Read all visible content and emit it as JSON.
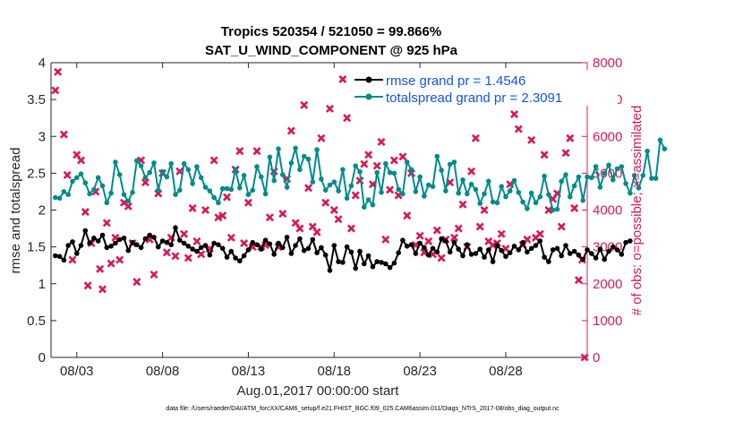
{
  "chart_data": {
    "type": "line",
    "title": "Tropics 520354 / 521050 = 99.866%",
    "subtitle": "SAT_U_WIND_COMPONENT @ 925 hPa",
    "xlabel": "Aug.01,2017 00:00:00 start",
    "ylabel": "rmse and totalspread",
    "y2label": "# of obs: o=possible; ×=assimilated",
    "footnote": "data file: /Users/raeder/DAI/ATM_forcXX/CAM6_setup/f.e21.FHIST_BGC.f09_025.CAM6assim.011/Diags_NTrS_2017-08/obs_diag_output.nc",
    "xlim": [
      1.5,
      32.75
    ],
    "ylim": [
      0,
      4
    ],
    "y2lim": [
      0,
      8000
    ],
    "x_ticks": [
      3,
      8,
      13,
      18,
      23,
      28
    ],
    "x_tick_labels": [
      "08/03",
      "08/08",
      "08/13",
      "08/18",
      "08/23",
      "08/28"
    ],
    "y_ticks": [
      0,
      0.5,
      1,
      1.5,
      2,
      2.5,
      3,
      3.5,
      4
    ],
    "y_tick_labels": [
      "0",
      "0.5",
      "1",
      "1.5",
      "2",
      "2.5",
      "3",
      "3.5",
      "4"
    ],
    "y2_ticks": [
      0,
      1000,
      2000,
      3000,
      4000,
      5000,
      6000,
      7000,
      8000
    ],
    "y2_tick_labels": [
      "0",
      "1000",
      "2000",
      "3000",
      "4000",
      "5000",
      "6000",
      "7000",
      "8000"
    ],
    "legend_position": "top-right",
    "x_start": 1.75,
    "x_step": 0.25,
    "series": [
      {
        "name": "rmse grand pr = 1.4546",
        "color": "#000000",
        "marker": "circle",
        "axis": "left",
        "values": [
          1.38,
          1.37,
          1.32,
          1.52,
          1.57,
          1.41,
          1.52,
          1.72,
          1.55,
          1.62,
          1.58,
          1.66,
          1.49,
          1.51,
          1.55,
          1.6,
          1.62,
          1.45,
          1.56,
          1.53,
          1.49,
          1.61,
          1.66,
          1.63,
          1.5,
          1.58,
          1.56,
          1.53,
          1.76,
          1.59,
          1.55,
          1.51,
          1.47,
          1.44,
          1.49,
          1.52,
          1.39,
          1.55,
          1.53,
          1.48,
          1.36,
          1.44,
          1.35,
          1.31,
          1.38,
          1.46,
          1.56,
          1.53,
          1.47,
          1.59,
          1.54,
          1.4,
          1.55,
          1.49,
          1.63,
          1.41,
          1.52,
          1.61,
          1.45,
          1.48,
          1.6,
          1.42,
          1.49,
          1.39,
          1.18,
          1.52,
          1.3,
          1.29,
          1.5,
          1.43,
          1.21,
          1.44,
          1.27,
          1.38,
          1.23,
          1.3,
          1.29,
          1.27,
          1.22,
          1.28,
          1.42,
          1.59,
          1.51,
          1.53,
          1.41,
          1.55,
          1.49,
          1.39,
          1.48,
          1.43,
          1.61,
          1.58,
          1.43,
          1.56,
          1.47,
          1.38,
          1.53,
          1.4,
          1.41,
          1.47,
          1.36,
          1.46,
          1.3,
          1.52,
          1.45,
          1.37,
          1.42,
          1.51,
          1.46,
          1.56,
          1.43,
          1.48,
          1.52,
          1.58,
          1.36,
          1.3,
          1.46,
          1.48,
          1.38,
          1.52,
          1.41,
          1.44,
          1.39,
          1.33,
          1.46,
          1.41,
          1.35,
          1.47,
          1.33,
          1.44,
          1.5,
          1.46,
          1.4,
          1.56,
          1.58
        ]
      },
      {
        "name": "totalspread grand pr = 2.3091",
        "color": "#008b8b",
        "marker": "circle",
        "axis": "left",
        "values": [
          2.17,
          2.16,
          2.25,
          2.21,
          2.39,
          2.44,
          2.49,
          2.37,
          2.22,
          2.28,
          2.44,
          2.33,
          2.1,
          2.23,
          2.65,
          2.48,
          2.21,
          2.12,
          2.24,
          2.67,
          2.6,
          2.44,
          2.51,
          2.64,
          2.27,
          2.52,
          2.45,
          2.63,
          2.21,
          2.27,
          2.63,
          2.55,
          2.36,
          2.59,
          2.44,
          2.31,
          2.26,
          2.17,
          2.1,
          2.29,
          2.29,
          2.28,
          2.55,
          2.3,
          2.47,
          2.21,
          2.27,
          2.59,
          2.45,
          2.22,
          2.72,
          2.4,
          2.83,
          2.48,
          2.31,
          2.64,
          2.84,
          2.55,
          2.73,
          2.69,
          2.38,
          2.82,
          2.42,
          2.27,
          2.34,
          2.38,
          2.26,
          2.55,
          2.16,
          2.33,
          2.6,
          2.52,
          2.04,
          2.14,
          2.07,
          2.51,
          2.24,
          2.63,
          2.51,
          2.5,
          2.28,
          2.22,
          2.65,
          2.55,
          2.25,
          2.45,
          2.19,
          2.34,
          2.32,
          2.73,
          2.54,
          2.26,
          2.62,
          2.65,
          2.23,
          2.41,
          2.22,
          2.35,
          2.28,
          2.09,
          2.22,
          2.39,
          2.11,
          2.1,
          2.32,
          2.18,
          2.26,
          2.4,
          2.24,
          2.11,
          2.02,
          2.23,
          2.1,
          2.18,
          2.46,
          2.21,
          2.0,
          2.01,
          2.39,
          2.48,
          2.18,
          2.33,
          2.45,
          2.13,
          2.45,
          2.44,
          2.59,
          2.31,
          2.5,
          2.61,
          2.41,
          2.56,
          2.59,
          2.36,
          2.23,
          2.47,
          2.3,
          2.47,
          2.8,
          2.43,
          2.43,
          2.95,
          2.83
        ]
      }
    ],
    "obs_series": [
      {
        "name": "obs possible",
        "color": "#d61a5c",
        "marker": "o",
        "axis": "right",
        "values": []
      },
      {
        "name": "obs assimilated",
        "color": "#d61a5c",
        "marker": "x",
        "axis": "right",
        "points": [
          [
            1.75,
            7250
          ],
          [
            1.9,
            7750
          ],
          [
            2.25,
            6050
          ],
          [
            2.45,
            4950
          ],
          [
            2.75,
            2650
          ],
          [
            3.0,
            5500
          ],
          [
            3.25,
            5350
          ],
          [
            3.5,
            3950
          ],
          [
            3.65,
            1950
          ],
          [
            3.85,
            3100
          ],
          [
            4.1,
            4500
          ],
          [
            4.35,
            2400
          ],
          [
            4.5,
            1850
          ],
          [
            4.75,
            3650
          ],
          [
            5.0,
            2550
          ],
          [
            5.25,
            3250
          ],
          [
            5.5,
            2650
          ],
          [
            5.75,
            4200
          ],
          [
            6.0,
            4100
          ],
          [
            6.25,
            3100
          ],
          [
            6.5,
            2050
          ],
          [
            6.75,
            5350
          ],
          [
            7.0,
            4750
          ],
          [
            7.25,
            3200
          ],
          [
            7.5,
            2250
          ],
          [
            7.75,
            4450
          ],
          [
            8.0,
            5000
          ],
          [
            8.25,
            2850
          ],
          [
            8.5,
            3250
          ],
          [
            8.75,
            2750
          ],
          [
            9.0,
            5050
          ],
          [
            9.25,
            3350
          ],
          [
            9.5,
            2700
          ],
          [
            9.75,
            4050
          ],
          [
            10.0,
            3150
          ],
          [
            10.25,
            2800
          ],
          [
            10.5,
            4000
          ],
          [
            10.75,
            2950
          ],
          [
            11.0,
            5350
          ],
          [
            11.25,
            3800
          ],
          [
            11.5,
            3850
          ],
          [
            11.75,
            4350
          ],
          [
            12.0,
            3250
          ],
          [
            12.25,
            5100
          ],
          [
            12.5,
            5600
          ],
          [
            12.75,
            3100
          ],
          [
            13.0,
            4200
          ],
          [
            13.25,
            3000
          ],
          [
            13.5,
            5600
          ],
          [
            13.75,
            3000
          ],
          [
            14.0,
            3050
          ],
          [
            14.25,
            3800
          ],
          [
            14.5,
            5050
          ],
          [
            14.75,
            3000
          ],
          [
            15.0,
            3900
          ],
          [
            15.25,
            4850
          ],
          [
            15.5,
            6150
          ],
          [
            15.75,
            3650
          ],
          [
            16.0,
            3500
          ],
          [
            16.25,
            6850
          ],
          [
            16.5,
            4600
          ],
          [
            16.75,
            3550
          ],
          [
            17.0,
            3400
          ],
          [
            17.25,
            5950
          ],
          [
            17.5,
            4200
          ],
          [
            17.75,
            6750
          ],
          [
            18.0,
            4000
          ],
          [
            18.25,
            3750
          ],
          [
            18.5,
            7550
          ],
          [
            18.75,
            6500
          ],
          [
            19.0,
            3500
          ],
          [
            19.25,
            4400
          ],
          [
            19.5,
            4800
          ],
          [
            19.75,
            5250
          ],
          [
            20.0,
            5500
          ],
          [
            20.25,
            4700
          ],
          [
            20.5,
            5200
          ],
          [
            20.75,
            5850
          ],
          [
            21.0,
            3200
          ],
          [
            21.25,
            4550
          ],
          [
            21.5,
            5350
          ],
          [
            21.75,
            4400
          ],
          [
            22.0,
            5450
          ],
          [
            22.25,
            3850
          ],
          [
            22.5,
            5000
          ],
          [
            22.75,
            3050
          ],
          [
            23.0,
            3300
          ],
          [
            23.25,
            2850
          ],
          [
            23.5,
            3150
          ],
          [
            23.75,
            2800
          ],
          [
            24.0,
            3450
          ],
          [
            24.25,
            2700
          ],
          [
            24.5,
            3200
          ],
          [
            24.75,
            4750
          ],
          [
            25.0,
            3250
          ],
          [
            25.25,
            3500
          ],
          [
            25.5,
            4150
          ],
          [
            25.75,
            3000
          ],
          [
            26.0,
            5050
          ],
          [
            26.25,
            5950
          ],
          [
            26.5,
            3550
          ],
          [
            26.75,
            4000
          ],
          [
            27.0,
            3150
          ],
          [
            27.25,
            3050
          ],
          [
            27.5,
            3100
          ],
          [
            27.75,
            3350
          ],
          [
            28.0,
            2950
          ],
          [
            28.25,
            4700
          ],
          [
            28.5,
            6600
          ],
          [
            28.75,
            6200
          ],
          [
            29.0,
            3050
          ],
          [
            29.25,
            3200
          ],
          [
            29.5,
            5900
          ],
          [
            29.75,
            3250
          ],
          [
            30.0,
            3350
          ],
          [
            30.25,
            5500
          ],
          [
            30.5,
            4000
          ],
          [
            30.75,
            4300
          ],
          [
            31.0,
            4450
          ],
          [
            31.25,
            3550
          ],
          [
            31.5,
            5550
          ],
          [
            31.75,
            5950
          ],
          [
            32.0,
            4050
          ],
          [
            32.25,
            2100
          ],
          [
            32.45,
            2650
          ],
          [
            32.6,
            0
          ]
        ]
      }
    ]
  },
  "layout_colors": {
    "left_axis": "#262626",
    "right_axis": "#d61a5c",
    "legend_text": "#1155e0"
  }
}
